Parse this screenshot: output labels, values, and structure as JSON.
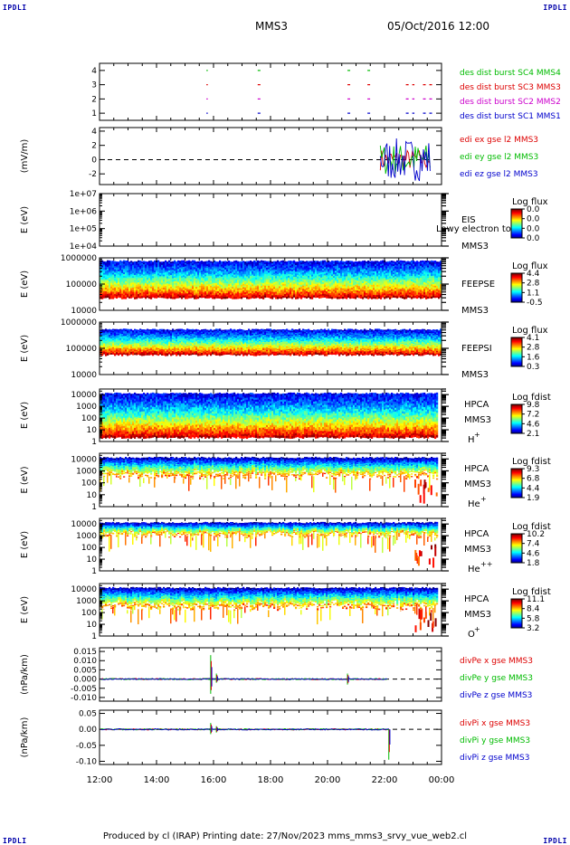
{
  "header": {
    "corner_left": "IPDLI",
    "corner_right": "IPDLI",
    "corner_bottom_left": "IPDLI",
    "corner_bottom_right": "IPDLI",
    "spacecraft": "MMS3",
    "datetime": "05/Oct/2016 12:00"
  },
  "footer": {
    "text": "Produced by cl (IRAP)   Printing date: 27/Nov/2023   mms_mms3_srvy_vue_web2.cl"
  },
  "colors": {
    "mms1": "#0000cc",
    "mms2": "#cc00cc",
    "mms3": "#dd0000",
    "mms4": "#00bb00",
    "x_component": "#dd0000",
    "y_component": "#00bb00",
    "z_component": "#0000cc"
  },
  "chart_data": [
    {
      "id": "burst",
      "type": "line",
      "ylabel": "",
      "ylim": [
        0.5,
        4.5
      ],
      "yticks": [
        "1",
        "2",
        "3",
        "4"
      ],
      "series": [
        {
          "name": "des dist burst SC1 MMS1",
          "color_key": "mms1",
          "level": 1,
          "intervals": [
            [
              15.75,
              15.8
            ],
            [
              17.55,
              17.75
            ],
            [
              20.7,
              20.8
            ],
            [
              21.4,
              21.5
            ],
            [
              22.75,
              23.05
            ],
            [
              23.35,
              23.7
            ]
          ]
        },
        {
          "name": "des dist burst SC2 MMS2",
          "color_key": "mms2",
          "level": 2,
          "intervals": [
            [
              15.75,
              15.8
            ],
            [
              17.55,
              17.75
            ],
            [
              20.7,
              20.8
            ],
            [
              21.4,
              21.5
            ],
            [
              22.75,
              23.05
            ],
            [
              23.35,
              23.7
            ]
          ]
        },
        {
          "name": "des dist burst SC3 MMS3",
          "color_key": "mms3",
          "level": 3,
          "intervals": [
            [
              15.75,
              15.8
            ],
            [
              17.55,
              17.75
            ],
            [
              20.7,
              20.8
            ],
            [
              21.4,
              21.5
            ],
            [
              22.75,
              23.05
            ],
            [
              23.35,
              23.7
            ]
          ]
        },
        {
          "name": "des dist burst SC4 MMS4",
          "color_key": "mms4",
          "level": 4,
          "intervals": [
            [
              15.75,
              15.8
            ],
            [
              17.55,
              17.75
            ],
            [
              20.7,
              20.8
            ],
            [
              21.4,
              21.5
            ]
          ]
        }
      ]
    },
    {
      "id": "edi",
      "type": "line",
      "ylabel": "(mV/m)",
      "ylim": [
        -3.5,
        4.5
      ],
      "yticks": [
        "-2",
        "0",
        "2",
        "4"
      ],
      "series": [
        {
          "name": "edi ex gse l2 MMS3",
          "color_key": "x_component"
        },
        {
          "name": "edi ey gse l2 MMS3",
          "color_key": "y_component"
        },
        {
          "name": "edi ez gse l2 MMS3",
          "color_key": "z_component"
        }
      ],
      "active_interval": [
        21.85,
        23.6
      ],
      "amplitude": 3
    },
    {
      "id": "eis",
      "type": "heatmap",
      "ylabel": "E (eV)",
      "yscale": "log",
      "ylim": [
        10000,
        10000000
      ],
      "yticks": [
        "1e+04",
        "1e+05",
        "1e+06",
        "1e+07"
      ],
      "labels": [
        "EIS",
        "MMS3"
      ],
      "overlay_text": "Lowy electron to",
      "colorbar": {
        "title": "Log flux",
        "ticks": [
          "0.0",
          "0.0",
          "0.0",
          "0.0"
        ]
      },
      "empty": true
    },
    {
      "id": "feepse",
      "type": "heatmap",
      "ylabel": "E (eV)",
      "yscale": "log",
      "ylim": [
        10000,
        1000000
      ],
      "yticks": [
        "10000",
        "100000",
        "1000000"
      ],
      "labels": [
        "FEEPSE",
        "MMS3"
      ],
      "colorbar": {
        "title": "Log flux",
        "ticks": [
          "4.4",
          "2.8",
          "1.1",
          "-0.5"
        ]
      },
      "band": {
        "top": 0.06,
        "bottom": 0.76,
        "hot_low": true
      }
    },
    {
      "id": "feepsi",
      "type": "heatmap",
      "ylabel": "E (eV)",
      "yscale": "log",
      "ylim": [
        10000,
        1000000
      ],
      "yticks": [
        "10000",
        "100000",
        "1000000"
      ],
      "labels": [
        "FEEPSI",
        "MMS3"
      ],
      "colorbar": {
        "title": "Log flux",
        "ticks": [
          "4.1",
          "2.8",
          "1.6",
          "0.3"
        ]
      },
      "band": {
        "top": 0.14,
        "bottom": 0.62,
        "hot_low": true
      }
    },
    {
      "id": "hpca_h",
      "type": "heatmap",
      "ylabel": "E (eV)",
      "yscale": "log",
      "ylim": [
        1,
        30000
      ],
      "yticks": [
        "1",
        "10",
        "100",
        "1000",
        "10000"
      ],
      "labels": [
        "HPCA",
        "MMS3"
      ],
      "species": "H",
      "species_sup": "+",
      "colorbar": {
        "title": "Log fdist",
        "ticks": [
          "9.8",
          "7.2",
          "4.6",
          "2.1"
        ]
      },
      "band": {
        "top": 0.08,
        "bottom": 0.92,
        "hot_low": true,
        "stop": 23.85
      }
    },
    {
      "id": "hpca_he",
      "type": "heatmap",
      "ylabel": "E (eV)",
      "yscale": "log",
      "ylim": [
        1,
        30000
      ],
      "yticks": [
        "1",
        "10",
        "100",
        "1000",
        "10000"
      ],
      "labels": [
        "HPCA",
        "MMS3"
      ],
      "species": "He",
      "species_sup": "+",
      "colorbar": {
        "title": "Log fdist",
        "ticks": [
          "9.3",
          "6.8",
          "4.4",
          "1.9"
        ]
      },
      "band": {
        "top": 0.08,
        "bottom": 0.42,
        "hot_low": false,
        "stop": 23.85
      }
    },
    {
      "id": "hpca_hepp",
      "type": "heatmap",
      "ylabel": "E (eV)",
      "yscale": "log",
      "ylim": [
        1,
        30000
      ],
      "yticks": [
        "1",
        "10",
        "100",
        "1000",
        "10000"
      ],
      "labels": [
        "HPCA",
        "MMS3"
      ],
      "species": "He",
      "species_sup": "++",
      "colorbar": {
        "title": "Log fdist",
        "ticks": [
          "10.2",
          "7.4",
          "4.6",
          "1.8"
        ]
      },
      "band": {
        "top": 0.08,
        "bottom": 0.3,
        "hot_low": false,
        "stop": 23.85
      }
    },
    {
      "id": "hpca_o",
      "type": "heatmap",
      "ylabel": "E (eV)",
      "yscale": "log",
      "ylim": [
        1,
        30000
      ],
      "yticks": [
        "1",
        "10",
        "100",
        "1000",
        "10000"
      ],
      "labels": [
        "HPCA",
        "MMS3"
      ],
      "species": "O",
      "species_sup": "+",
      "colorbar": {
        "title": "Log fdist",
        "ticks": [
          "11.1",
          "8.4",
          "5.8",
          "3.2"
        ]
      },
      "band": {
        "top": 0.08,
        "bottom": 0.44,
        "hot_low": false,
        "stop": 23.85
      }
    },
    {
      "id": "divpe",
      "type": "line",
      "ylabel": "(nPa/km)",
      "ylim": [
        -0.012,
        0.017
      ],
      "yticks": [
        "-0.010",
        "-0.005",
        "0.000",
        "0.005",
        "0.010",
        "0.015"
      ],
      "series": [
        {
          "name": "divPe x gse MMS3",
          "color_key": "x_component"
        },
        {
          "name": "divPe y gse MMS3",
          "color_key": "y_component"
        },
        {
          "name": "divPe z gse MMS3",
          "color_key": "z_component"
        }
      ],
      "spikes": [
        {
          "t": 15.9,
          "v": 0.013,
          "v2": -0.008
        },
        {
          "t": 16.1,
          "v": 0.003,
          "v2": -0.002
        },
        {
          "t": 20.7,
          "v": 0.003,
          "v2": -0.003
        }
      ],
      "stop": 22.1
    },
    {
      "id": "divpi",
      "type": "line",
      "ylabel": "(nPa/km)",
      "ylim": [
        -0.11,
        0.06
      ],
      "yticks": [
        "-0.10",
        "-0.05",
        "0.00",
        "0.05"
      ],
      "series": [
        {
          "name": "divPi x gse MMS3",
          "color_key": "x_component"
        },
        {
          "name": "divPi y gse MMS3",
          "color_key": "y_component"
        },
        {
          "name": "divPi z gse MMS3",
          "color_key": "z_component"
        }
      ],
      "spikes": [
        {
          "t": 15.9,
          "v": 0.02,
          "v2": -0.015
        },
        {
          "t": 16.1,
          "v": 0.01,
          "v2": -0.01
        },
        {
          "t": 22.15,
          "v": 0.0,
          "v2": -0.095
        }
      ],
      "stop": 22.15
    }
  ],
  "x_axis": {
    "ticks": [
      "12:00",
      "14:00",
      "16:00",
      "18:00",
      "20:00",
      "22:00",
      "00:00"
    ],
    "range_hours": [
      12,
      24
    ]
  }
}
